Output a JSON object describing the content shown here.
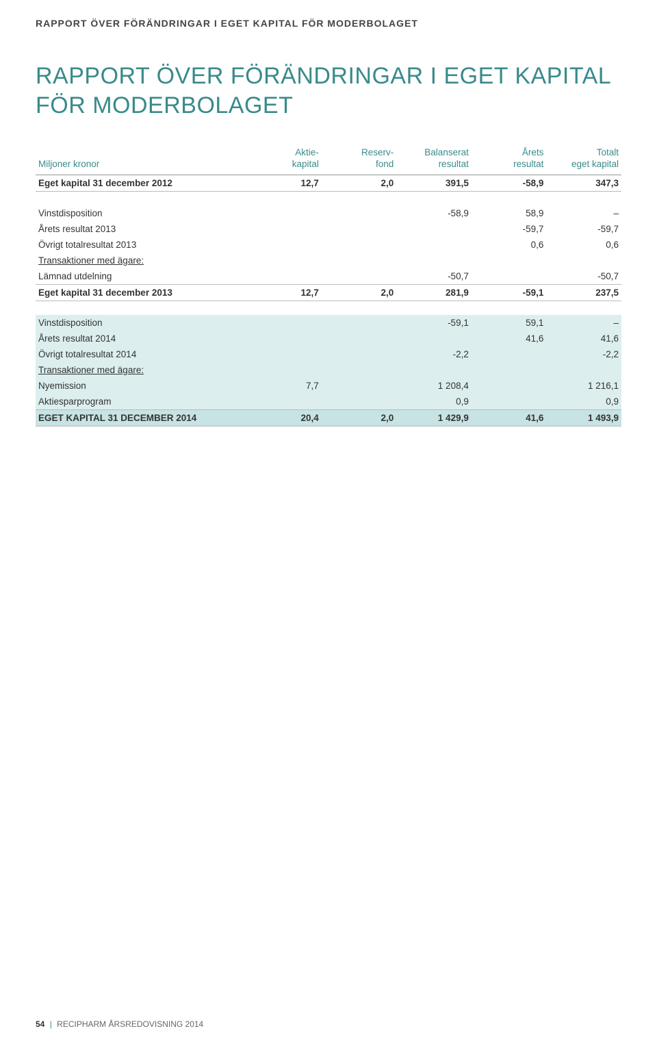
{
  "header": {
    "section": "RAPPORT ÖVER FÖRÄNDRINGAR I EGET KAPITAL FÖR MODERBOLAGET"
  },
  "title": {
    "line1": "RAPPORT ÖVER FÖRÄNDRINGAR I EGET KAPITAL",
    "line2": "FÖR MODERBOLAGET"
  },
  "columns": {
    "label": "Miljoner kronor",
    "c1a": "Aktie-",
    "c1b": "kapital",
    "c2a": "Reserv-",
    "c2b": "fond",
    "c3a": "Balanserat",
    "c3b": "resultat",
    "c4a": "Årets",
    "c4b": "resultat",
    "c5a": "Totalt",
    "c5b": "eget kapital"
  },
  "row_eget2012": {
    "label": "Eget kapital 31 december 2012",
    "c1": "12,7",
    "c2": "2,0",
    "c3": "391,5",
    "c4": "-58,9",
    "c5": "347,3"
  },
  "row_vinst1": {
    "label": "Vinstdisposition",
    "c3": "-58,9",
    "c4": "58,9",
    "c5": "–"
  },
  "row_ar2013": {
    "label": "Årets resultat 2013",
    "c4": "-59,7",
    "c5": "-59,7"
  },
  "row_ovr2013": {
    "label": "Övrigt totalresultat 2013",
    "c4": "0,6",
    "c5": "0,6"
  },
  "row_trans1": {
    "label": "Transaktioner med ägare:"
  },
  "row_lamn": {
    "label": "Lämnad utdelning",
    "c3": "-50,7",
    "c5": "-50,7"
  },
  "row_eget2013": {
    "label": "Eget kapital 31 december 2013",
    "c1": "12,7",
    "c2": "2,0",
    "c3": "281,9",
    "c4": "-59,1",
    "c5": "237,5"
  },
  "row_vinst2": {
    "label": "Vinstdisposition",
    "c3": "-59,1",
    "c4": "59,1",
    "c5": "–"
  },
  "row_ar2014": {
    "label": "Årets resultat 2014",
    "c4": "41,6",
    "c5": "41,6"
  },
  "row_ovr2014": {
    "label": "Övrigt totalresultat 2014",
    "c3": "-2,2",
    "c5": "-2,2"
  },
  "row_trans2": {
    "label": "Transaktioner med ägare:"
  },
  "row_nyem": {
    "label": "Nyemission",
    "c1": "7,7",
    "c3": "1 208,4",
    "c5": "1 216,1"
  },
  "row_aktsp": {
    "label": "Aktiesparprogram",
    "c3": "0,9",
    "c5": "0,9"
  },
  "row_final": {
    "label": "EGET KAPITAL 31 DECEMBER 2014",
    "c1": "20,4",
    "c2": "2,0",
    "c3": "1 429,9",
    "c4": "41,6",
    "c5": "1 493,9"
  },
  "footer": {
    "page": "54",
    "text": "RECIPHARM ÅRSREDOVISNING 2014"
  }
}
